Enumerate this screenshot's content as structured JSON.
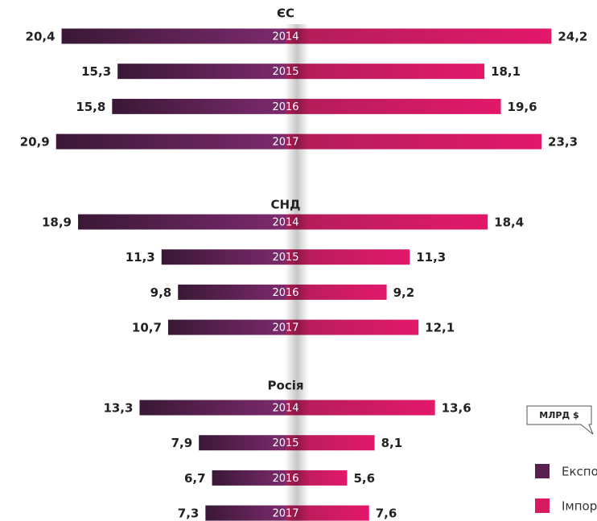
{
  "chart_data": {
    "type": "butterfly-bar",
    "unit": "МЛРД $",
    "legend": [
      {
        "name": "Експорт",
        "color": "#5a2050"
      },
      {
        "name": "Імпорт",
        "color": "#d81b60"
      }
    ],
    "groups": [
      {
        "title": "ЄС",
        "categories": [
          "2014",
          "2015",
          "2016",
          "2017"
        ],
        "series": [
          {
            "values": [
              20.4,
              15.3,
              15.8,
              20.9
            ],
            "value_labels": [
              "20,4",
              "15,3",
              "15,8",
              "20,9"
            ]
          },
          {
            "values": [
              24.2,
              18.1,
              19.6,
              23.3
            ],
            "value_labels": [
              "24,2",
              "18,1",
              "19,6",
              "23,3"
            ]
          }
        ]
      },
      {
        "title": "СНД",
        "categories": [
          "2014",
          "2015",
          "2016",
          "2017"
        ],
        "series": [
          {
            "values": [
              18.9,
              11.3,
              9.8,
              10.7
            ],
            "value_labels": [
              "18,9",
              "11,3",
              "9,8",
              "10,7"
            ]
          },
          {
            "values": [
              18.4,
              11.3,
              9.2,
              12.1
            ],
            "value_labels": [
              "18,4",
              "11,3",
              "9,2",
              "12,1"
            ]
          }
        ]
      },
      {
        "title": "Росія",
        "categories": [
          "2014",
          "2015",
          "2016",
          "2017"
        ],
        "series": [
          {
            "values": [
              13.3,
              7.9,
              6.7,
              7.3
            ],
            "value_labels": [
              "13,3",
              "7,9",
              "6,7",
              "7,3"
            ]
          },
          {
            "values": [
              13.6,
              8.1,
              5.6,
              7.6
            ],
            "value_labels": [
              "13,6",
              "8,1",
              "5,6",
              "7,6"
            ]
          }
        ]
      }
    ]
  }
}
